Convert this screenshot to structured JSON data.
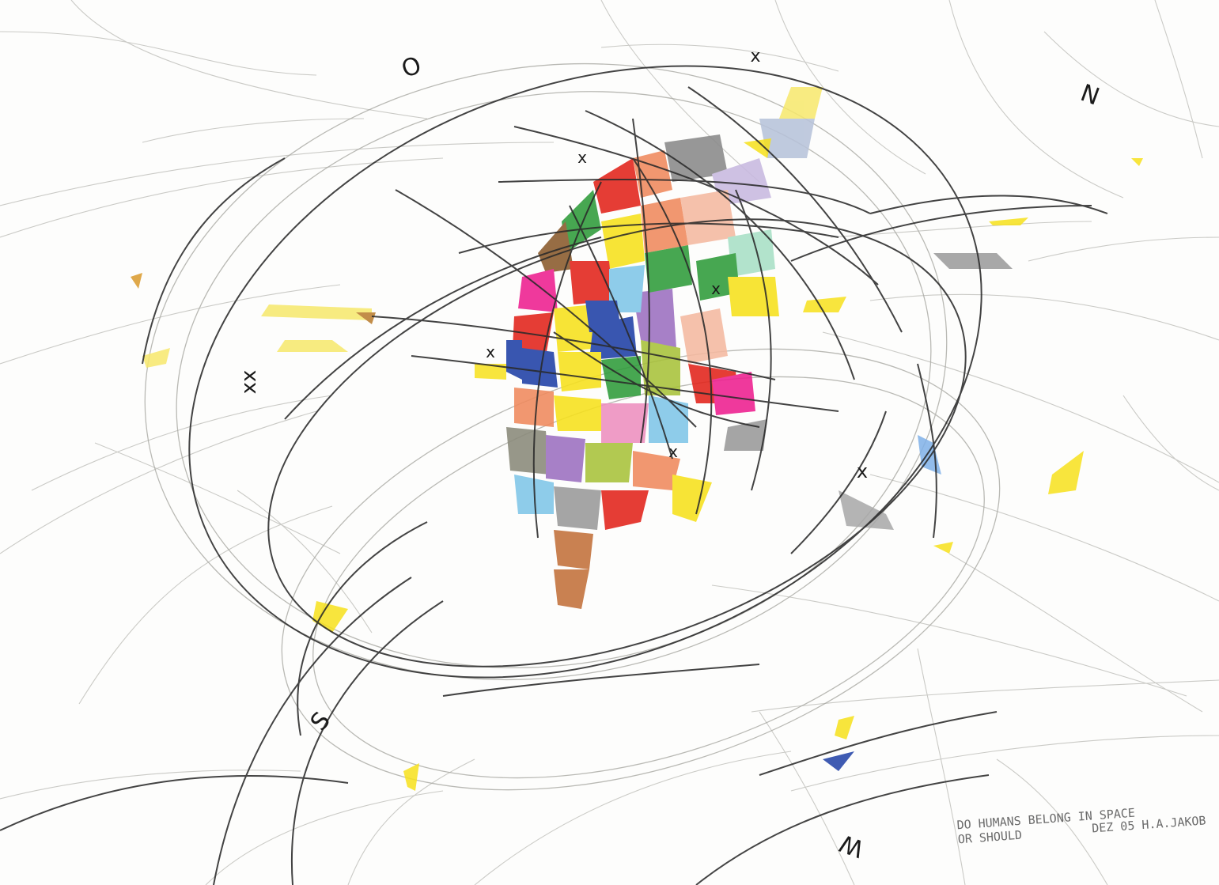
{
  "artwork": {
    "letters": {
      "o": "O",
      "n": "N",
      "s": "S",
      "w": "W"
    },
    "crosses": {
      "top": "x",
      "upper_center": "x",
      "center_right": "x",
      "center_left": "x",
      "lower_center": "x",
      "right": "x",
      "double": "xx"
    },
    "inscription": {
      "line1": "DO HUMANS BELONG IN SPACE",
      "line2": "OR SHOULD",
      "date_signature": "DEZ 05  H.A.JAKOB"
    },
    "palette": [
      "#e2231a",
      "#f7e11b",
      "#1e3fa6",
      "#2e9c3a",
      "#ee1f8f",
      "#8a5a2b",
      "#f08a5d",
      "#9c6fc0",
      "#7fc6e8",
      "#9a9a9a",
      "#a8c23a",
      "#c2703a"
    ]
  }
}
